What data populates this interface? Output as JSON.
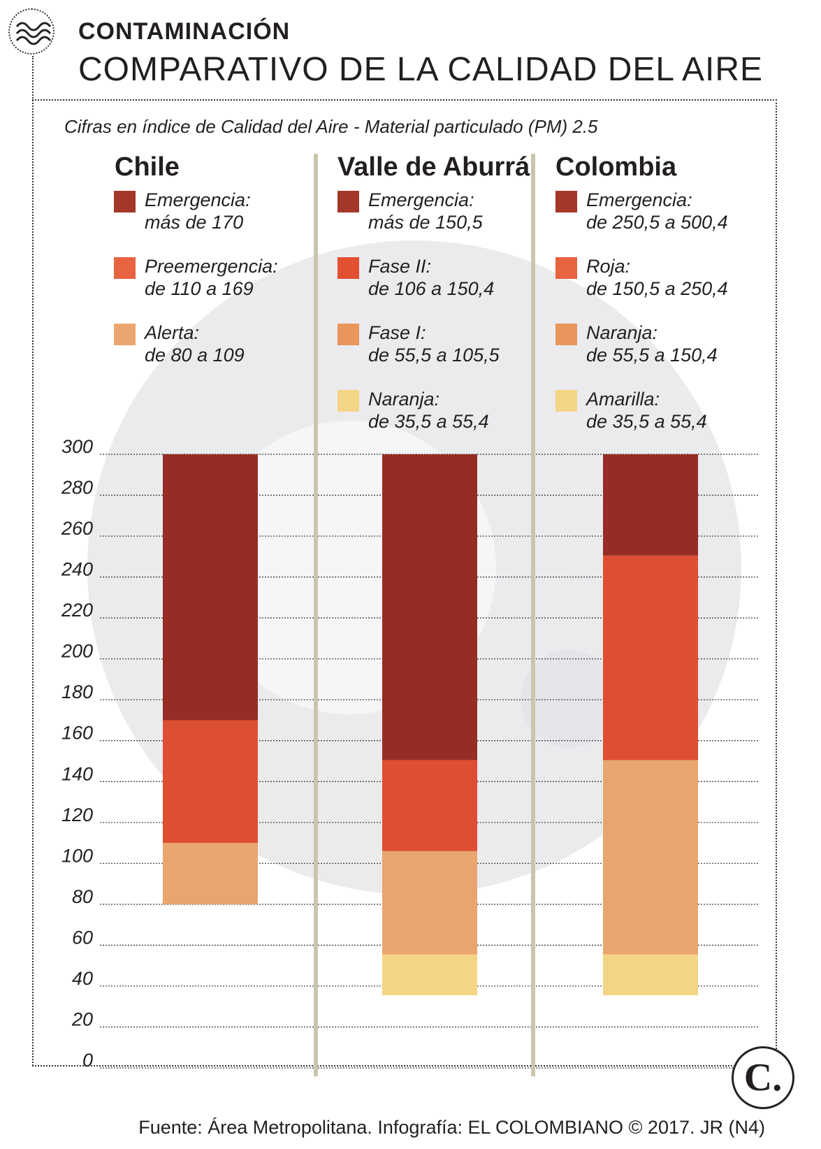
{
  "kicker": "CONTAMINACIÓN",
  "headline": "COMPARATIVO DE LA CALIDAD DEL AIRE",
  "subtitle": "Cifras en índice de Calidad del Aire - Material particulado (PM) 2.5",
  "footer": "Fuente: Área Metropolitana. Infografía: EL COLOMBIANO © 2017. JR (N4)",
  "brand_letter": "C.",
  "colors": {
    "emergency": "#962d24",
    "red": "#de4e33",
    "orange": "#e8a56f",
    "yellow": "#f4d585",
    "divider": "#cbc5ad",
    "watermark": "#e4e4e8"
  },
  "regions": [
    {
      "name": "Chile",
      "legend": [
        {
          "label": "Emergencia:",
          "range": "más de 170",
          "color": "#a3372a"
        },
        {
          "label": "Preemergencia:",
          "range": "de 110 a 169",
          "color": "#e8633f"
        },
        {
          "label": "Alerta:",
          "range": "de 80 a 109",
          "color": "#eba670"
        }
      ]
    },
    {
      "name": "Valle de Aburrá",
      "legend": [
        {
          "label": "Emergencia:",
          "range": "más de 150,5",
          "color": "#a3372a"
        },
        {
          "label": "Fase II:",
          "range": "de 106 a 150,4",
          "color": "#e25032"
        },
        {
          "label": "Fase I:",
          "range": "de 55,5 a 105,5",
          "color": "#e8965c"
        },
        {
          "label": "Naranja:",
          "range": "de 35,5 a 55,4",
          "color": "#f4d585"
        }
      ]
    },
    {
      "name": "Colombia",
      "legend": [
        {
          "label": "Emergencia:",
          "range": "de 250,5 a 500,4",
          "color": "#a3372a"
        },
        {
          "label": "Roja:",
          "range": "de 150,5 a 250,4",
          "color": "#e8633f"
        },
        {
          "label": "Naranja:",
          "range": "de 55,5 a 150,4",
          "color": "#e8965c"
        },
        {
          "label": "Amarilla:",
          "range": "de 35,5 a 55,4",
          "color": "#f4d585"
        }
      ]
    }
  ],
  "chart_data": {
    "type": "bar",
    "stacked": true,
    "categories": [
      "Chile",
      "Valle de Aburrá",
      "Colombia"
    ],
    "ylim": [
      0,
      300
    ],
    "yticks": [
      0,
      20,
      40,
      60,
      80,
      100,
      120,
      140,
      160,
      180,
      200,
      220,
      240,
      260,
      280,
      300
    ],
    "grid": true,
    "bars": [
      {
        "category": "Chile",
        "segments": [
          {
            "from": 80,
            "to": 110,
            "color": "#e8a56f"
          },
          {
            "from": 110,
            "to": 170,
            "color": "#de4e33"
          },
          {
            "from": 170,
            "to": 300,
            "color": "#962d24"
          }
        ]
      },
      {
        "category": "Valle de Aburrá",
        "segments": [
          {
            "from": 35.5,
            "to": 55.5,
            "color": "#f4d585"
          },
          {
            "from": 55.5,
            "to": 106,
            "color": "#e8a56f"
          },
          {
            "from": 106,
            "to": 150.5,
            "color": "#de4e33"
          },
          {
            "from": 150.5,
            "to": 300,
            "color": "#962d24"
          }
        ]
      },
      {
        "category": "Colombia",
        "segments": [
          {
            "from": 35.5,
            "to": 55.5,
            "color": "#f4d585"
          },
          {
            "from": 55.5,
            "to": 150.5,
            "color": "#e8a56f"
          },
          {
            "from": 150.5,
            "to": 250.5,
            "color": "#de4e33"
          },
          {
            "from": 250.5,
            "to": 300,
            "color": "#962d24"
          }
        ]
      }
    ]
  }
}
